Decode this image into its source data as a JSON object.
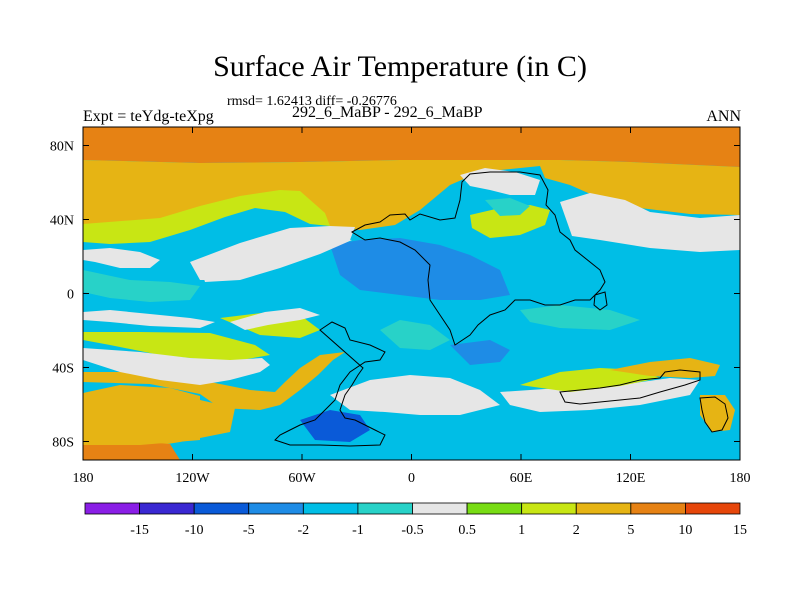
{
  "chart_data": {
    "type": "heatmap",
    "title": "Surface Air Temperature (in C)",
    "stats_line": "rmsd= 1.62413 diff= -0.26776",
    "left_subtitle": "Expt = teYdg-teXpg",
    "center_subtitle": "292_6_MaBP - 292_6_MaBP",
    "right_subtitle": "ANN",
    "xlim": [
      -180,
      180
    ],
    "ylim": [
      -90,
      90
    ],
    "x_ticks": [
      {
        "value": -180,
        "label": "180"
      },
      {
        "value": -120,
        "label": "120W"
      },
      {
        "value": -60,
        "label": "60W"
      },
      {
        "value": 0,
        "label": "0"
      },
      {
        "value": 60,
        "label": "60E"
      },
      {
        "value": 120,
        "label": "120E"
      },
      {
        "value": 180,
        "label": "180"
      }
    ],
    "y_ticks": [
      {
        "value": 80,
        "label": "80N"
      },
      {
        "value": 40,
        "label": "40N"
      },
      {
        "value": 0,
        "label": "0"
      },
      {
        "value": -40,
        "label": "40S"
      },
      {
        "value": -80,
        "label": "80S"
      }
    ],
    "colorbar": {
      "colors": [
        "#8a1ee6",
        "#3a28d2",
        "#0a5ad8",
        "#1e8ce6",
        "#00bee6",
        "#28d2c8",
        "#e6e6e6",
        "#78dc14",
        "#c8e614",
        "#e6b414",
        "#e68214",
        "#e6460a"
      ],
      "labels": [
        "-15",
        "-10",
        "-5",
        "-2",
        "-1",
        "-0.5",
        "0.5",
        "1",
        "2",
        "5",
        "10",
        "15"
      ]
    },
    "field_colors": {
      "warm_strong": "#e68214",
      "warm": "#e6b414",
      "mild_warm": "#c8e614",
      "slight_warm": "#78dc14",
      "neutral": "#e6e6e6",
      "slight_cool": "#28d2c8",
      "cool": "#00bee6",
      "cooler": "#1e8ce6",
      "cold": "#0a5ad8"
    }
  }
}
